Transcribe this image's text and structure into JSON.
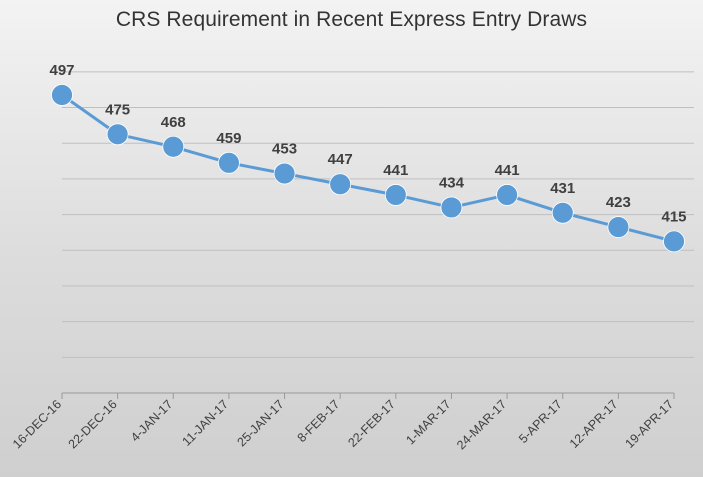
{
  "chart_data": {
    "type": "line",
    "title": "CRS Requirement in Recent Express Entry Draws",
    "categories": [
      "16-DEC-16",
      "22-DEC-16",
      "4-JAN-17",
      "11-JAN-17",
      "25-JAN-17",
      "8-FEB-17",
      "22-FEB-17",
      "1-MAR-17",
      "24-MAR-17",
      "5-APR-17",
      "12-APR-17",
      "19-APR-17"
    ],
    "series": [
      {
        "values": [
          497,
          475,
          468,
          459,
          453,
          447,
          441,
          434,
          441,
          431,
          423,
          415
        ],
        "color": "#5b9bd5"
      }
    ],
    "ylim": [
      330,
      520
    ],
    "grid": true,
    "data_labels": true,
    "y_tick_labels": false,
    "legend": false
  }
}
